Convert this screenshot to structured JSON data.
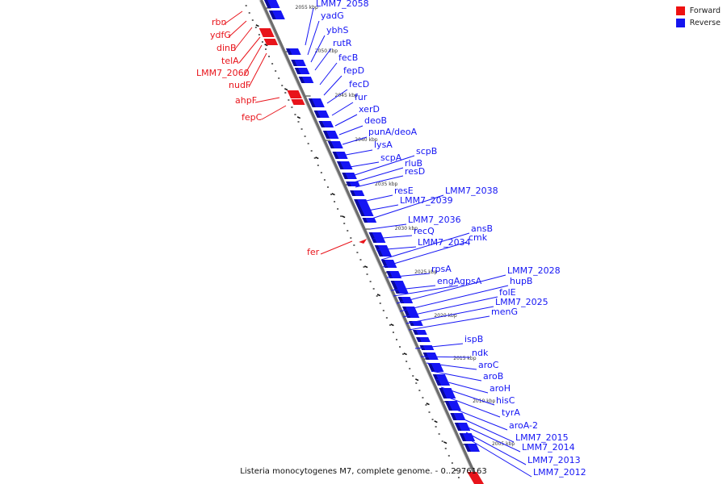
{
  "colors": {
    "forward": "#e8141b",
    "reverse": "#1515f4",
    "backbone": "#888888"
  },
  "legend": [
    {
      "label": "Forward",
      "color": "#ee1111"
    },
    {
      "label": "Reverse",
      "color": "#1515ee"
    }
  ],
  "caption": "Listeria monocytogenes M7, complete genome. - 0..2976163",
  "ticks": [
    "2055 kbp",
    "2050 kbp",
    "2045 kbp",
    "2040 kbp",
    "2035 kbp",
    "2030 kbp",
    "2025 kbp",
    "2020 kbp",
    "2015 kbp",
    "2010 kbp",
    "2005 kbp"
  ],
  "genes": [
    {
      "name": "rbn",
      "strand": "forward"
    },
    {
      "name": "ydfG",
      "strand": "forward"
    },
    {
      "name": "dinB",
      "strand": "forward"
    },
    {
      "name": "telA",
      "strand": "forward"
    },
    {
      "name": "LMM7_2060",
      "strand": "forward"
    },
    {
      "name": "nudF",
      "strand": "forward"
    },
    {
      "name": "ahpF",
      "strand": "forward"
    },
    {
      "name": "fepC",
      "strand": "forward"
    },
    {
      "name": "fer",
      "strand": "forward"
    },
    {
      "name": "LMM7_2058",
      "strand": "reverse"
    },
    {
      "name": "yadG",
      "strand": "reverse"
    },
    {
      "name": "ybhS",
      "strand": "reverse"
    },
    {
      "name": "rutR",
      "strand": "reverse"
    },
    {
      "name": "fecB",
      "strand": "reverse"
    },
    {
      "name": "fepD",
      "strand": "reverse"
    },
    {
      "name": "fecD",
      "strand": "reverse"
    },
    {
      "name": "fur",
      "strand": "reverse"
    },
    {
      "name": "xerD",
      "strand": "reverse"
    },
    {
      "name": "deoB",
      "strand": "reverse"
    },
    {
      "name": "punA/deoA",
      "strand": "reverse"
    },
    {
      "name": "lysA",
      "strand": "reverse"
    },
    {
      "name": "scpB",
      "strand": "reverse"
    },
    {
      "name": "scpA",
      "strand": "reverse"
    },
    {
      "name": "rluB",
      "strand": "reverse"
    },
    {
      "name": "resD",
      "strand": "reverse"
    },
    {
      "name": "resE",
      "strand": "reverse"
    },
    {
      "name": "LMM7_2038",
      "strand": "reverse"
    },
    {
      "name": "LMM7_2039",
      "strand": "reverse"
    },
    {
      "name": "LMM7_2036",
      "strand": "reverse"
    },
    {
      "name": "recQ",
      "strand": "reverse"
    },
    {
      "name": "ansB",
      "strand": "reverse"
    },
    {
      "name": "cmk",
      "strand": "reverse"
    },
    {
      "name": "LMM7_2034",
      "strand": "reverse"
    },
    {
      "name": "rpsA",
      "strand": "reverse"
    },
    {
      "name": "LMM7_2028",
      "strand": "reverse"
    },
    {
      "name": "engA",
      "strand": "reverse"
    },
    {
      "name": "gpsA",
      "strand": "reverse"
    },
    {
      "name": "hupB",
      "strand": "reverse"
    },
    {
      "name": "folE",
      "strand": "reverse"
    },
    {
      "name": "LMM7_2025",
      "strand": "reverse"
    },
    {
      "name": "menG",
      "strand": "reverse"
    },
    {
      "name": "ispB",
      "strand": "reverse"
    },
    {
      "name": "ndk",
      "strand": "reverse"
    },
    {
      "name": "aroC",
      "strand": "reverse"
    },
    {
      "name": "aroB",
      "strand": "reverse"
    },
    {
      "name": "aroH",
      "strand": "reverse"
    },
    {
      "name": "hisC",
      "strand": "reverse"
    },
    {
      "name": "tyrA",
      "strand": "reverse"
    },
    {
      "name": "aroA-2",
      "strand": "reverse"
    },
    {
      "name": "LMM7_2015",
      "strand": "reverse"
    },
    {
      "name": "LMM7_2014",
      "strand": "reverse"
    },
    {
      "name": "LMM7_2013",
      "strand": "reverse"
    },
    {
      "name": "LMM7_2012",
      "strand": "reverse"
    }
  ]
}
